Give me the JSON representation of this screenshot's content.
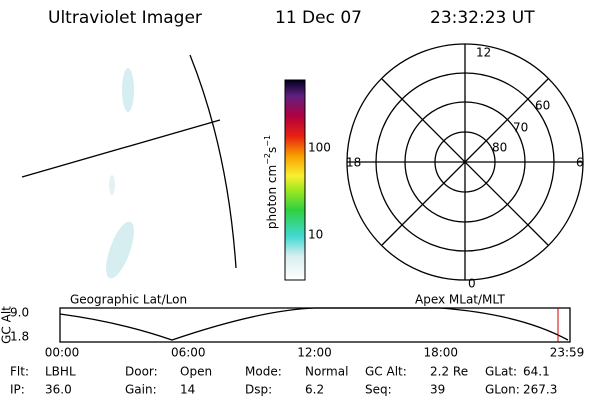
{
  "header": {
    "title": "Ultraviolet Imager",
    "date": "11 Dec 07",
    "time": "23:32:23 UT"
  },
  "left_panel": {
    "label": "Geographic Lat/Lon"
  },
  "colorbar": {
    "unit_parts": [
      "photon cm",
      "−2",
      "s",
      "−1"
    ],
    "ticks": [
      "100",
      "10"
    ]
  },
  "polar": {
    "label": "Apex MLat/MLT",
    "mlt_labels": [
      "12",
      "18",
      "6",
      "0"
    ],
    "lat_labels": [
      "60",
      "70",
      "80"
    ]
  },
  "altitude_plot": {
    "ylabel": "GC Alt",
    "yticks": [
      "9.0",
      "1.8"
    ],
    "xticks": [
      "00:00",
      "06:00",
      "12:00",
      "18:00",
      "23:59"
    ]
  },
  "footer": {
    "rows": [
      [
        [
          "Flt:",
          "LBHL"
        ],
        [
          "Door:",
          "Open"
        ],
        [
          "Mode:",
          "Normal"
        ],
        [
          "GC Alt:",
          "2.2 Re"
        ],
        [
          "GLat:",
          "64.1"
        ]
      ],
      [
        [
          "IP:",
          "36.0"
        ],
        [
          "Gain:",
          "14"
        ],
        [
          "Dsp:",
          "6.2"
        ],
        [
          "Seq:",
          "39"
        ],
        [
          "GLon:",
          "267.3"
        ]
      ]
    ]
  }
}
